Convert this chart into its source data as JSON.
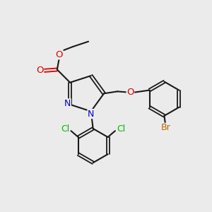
{
  "background_color": "#ebebeb",
  "bond_color": "#1a1a1a",
  "atom_colors": {
    "N": "#0000cc",
    "O": "#dd0000",
    "Cl": "#00bb00",
    "Br": "#bb6600",
    "C": "#1a1a1a"
  },
  "figsize": [
    3.0,
    3.0
  ],
  "dpi": 100,
  "xlim": [
    0,
    10
  ],
  "ylim": [
    0,
    10
  ]
}
